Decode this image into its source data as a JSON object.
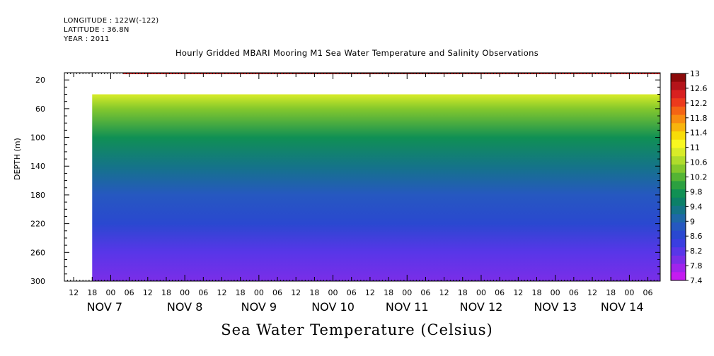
{
  "header": {
    "longitude": "LONGITUDE : 122W(-122)",
    "latitude": "LATITUDE : 36.8N",
    "year": "YEAR : 2011",
    "title": "Hourly Gridded MBARI Mooring M1 Sea Water Temperature and Salinity Observations"
  },
  "bottom_title": "Sea Water Temperature (Celsius)",
  "chart_data": {
    "type": "heatmap",
    "title": "Hourly Gridded MBARI Mooring M1 Sea Water Temperature and Salinity Observations",
    "colorbar_title": "Sea Water Temperature (Celsius)",
    "ylabel": "DEPTH (m)",
    "ylim": [
      300,
      10
    ],
    "y_ticks": [
      20,
      60,
      100,
      140,
      180,
      220,
      260,
      300
    ],
    "x_time_range": [
      "2011-11-06T09:00",
      "2011-11-14T10:00"
    ],
    "x_hour_ticks": [
      "12",
      "18",
      "00",
      "06",
      "12",
      "18",
      "00",
      "06",
      "12",
      "18",
      "00",
      "06",
      "12",
      "18",
      "00",
      "06",
      "12",
      "18",
      "00",
      "06",
      "12",
      "18",
      "00",
      "06",
      "12",
      "18",
      "00",
      "06",
      "12",
      "18",
      "00",
      "06"
    ],
    "x_date_labels": [
      "NOV 7",
      "NOV 8",
      "NOV 9",
      "NOV 10",
      "NOV 11",
      "NOV 12",
      "NOV 13",
      "NOV 14"
    ],
    "data_start": "2011-11-06T18:00",
    "surface_layer": {
      "depth": 10,
      "start": "2011-11-07T04:00",
      "temperature_range": [
        12.6,
        13
      ]
    },
    "data_top_depth": 40,
    "depth_profile": [
      {
        "depth": 40,
        "temperature": 11.0
      },
      {
        "depth": 60,
        "temperature": 10.4
      },
      {
        "depth": 100,
        "temperature": 9.8
      },
      {
        "depth": 140,
        "temperature": 9.2
      },
      {
        "depth": 180,
        "temperature": 8.9
      },
      {
        "depth": 220,
        "temperature": 8.5
      },
      {
        "depth": 260,
        "temperature": 8.2
      },
      {
        "depth": 300,
        "temperature": 7.8
      }
    ],
    "colorbar": {
      "levels": [
        "13",
        "12.6",
        "12.2",
        "11.8",
        "11.4",
        "11",
        "10.6",
        "10.2",
        "9.8",
        "9.4",
        "9",
        "8.6",
        "8.2",
        "7.8",
        "7.4"
      ],
      "colors": [
        "#8c0a0a",
        "#b4141a",
        "#d82020",
        "#ec3a1c",
        "#f46414",
        "#f88c10",
        "#f8b40c",
        "#f8dc08",
        "#f8f820",
        "#d8ec28",
        "#b0dc2c",
        "#84c82c",
        "#54b434",
        "#2ca040",
        "#109054",
        "#0c8068",
        "#147488",
        "#1e68a8",
        "#2658c0",
        "#2a48d0",
        "#3a3ee0",
        "#5836e8",
        "#7a2ee8",
        "#a024ec",
        "#c41cf0"
      ]
    }
  }
}
